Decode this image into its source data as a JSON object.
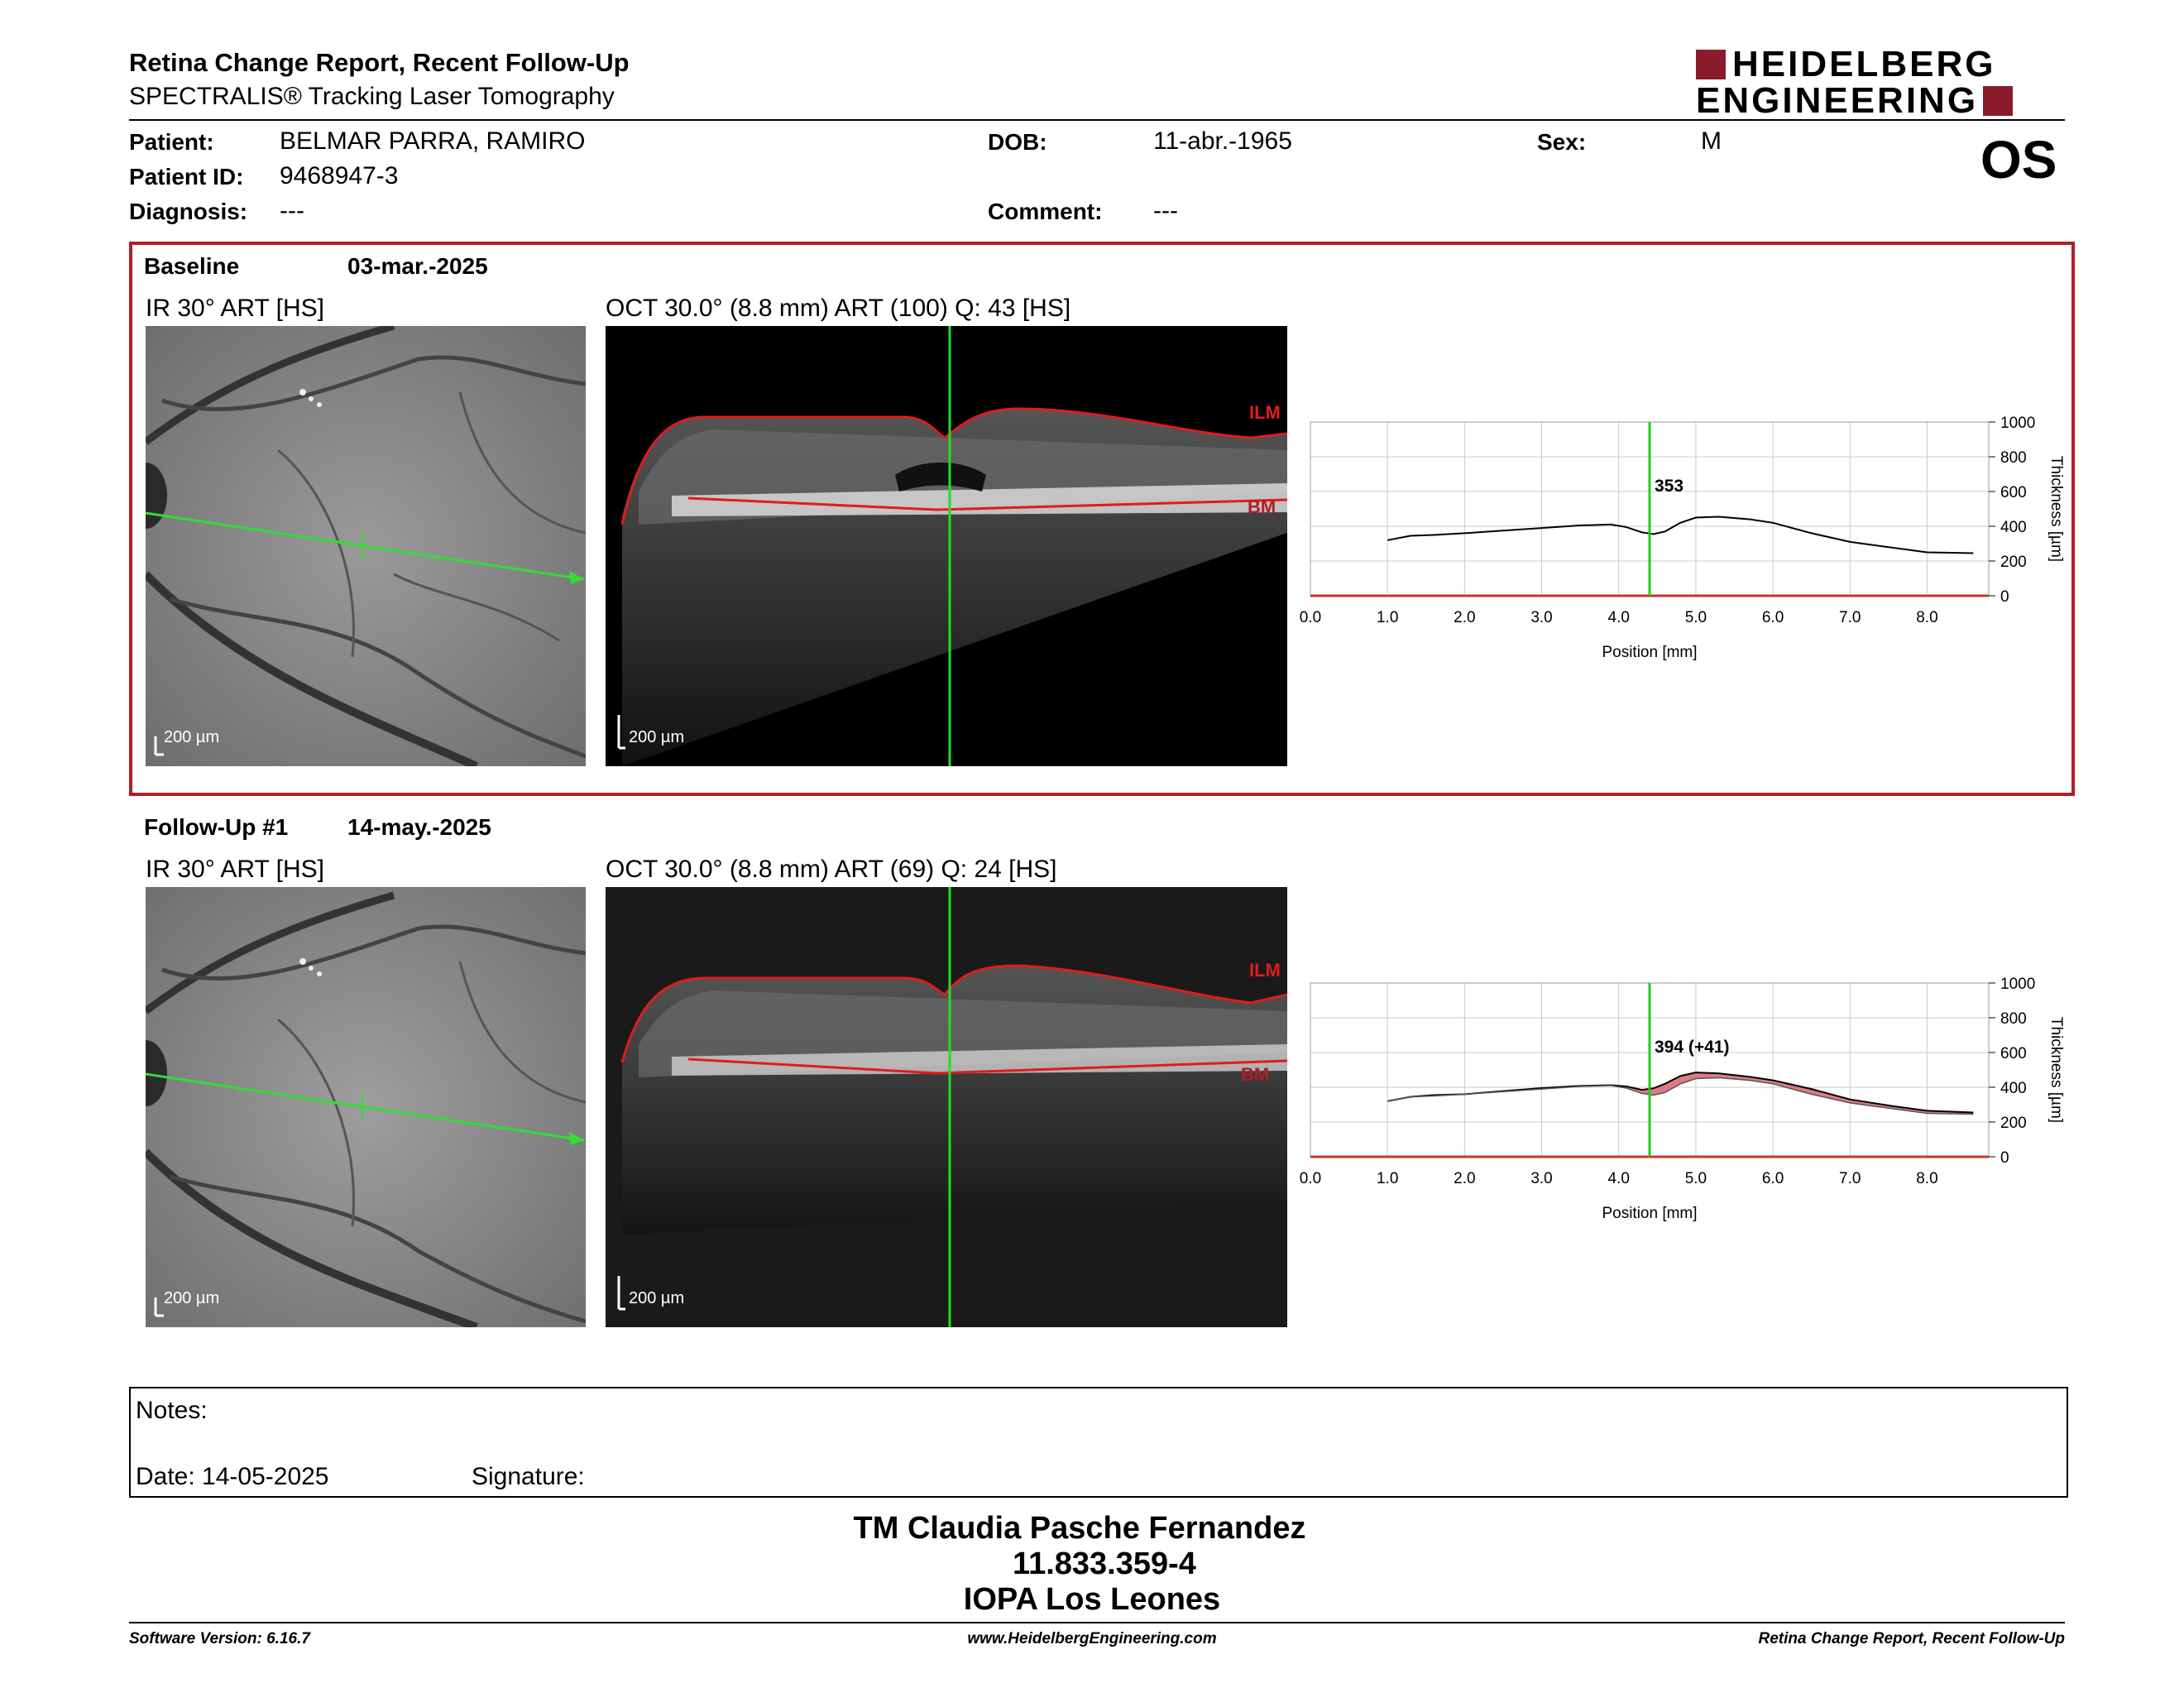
{
  "header": {
    "title": "Retina Change Report, Recent Follow-Up",
    "subtitle": "SPECTRALIS® Tracking Laser Tomography",
    "logo_line1": "HEIDELBERG",
    "logo_line2": "ENGINEERING",
    "eye": "OS"
  },
  "patient": {
    "name_label": "Patient:",
    "name": "BELMAR PARRA, RAMIRO",
    "id_label": "Patient ID:",
    "id": "9468947-3",
    "diagnosis_label": "Diagnosis:",
    "diagnosis": "---",
    "dob_label": "DOB:",
    "dob": "11-abr.-1965",
    "comment_label": "Comment:",
    "comment": "---",
    "sex_label": "Sex:",
    "sex": "M"
  },
  "baseline": {
    "label": "Baseline",
    "date": "03-mar.-2025",
    "ir_label": "IR 30° ART [HS]",
    "oct_label": "OCT 30.0° (8.8 mm) ART (100) Q: 43 [HS]",
    "scale_ir": "200 µm",
    "scale_oct": "200 µm",
    "ilm": "ILM",
    "bm": "BM"
  },
  "followup": {
    "label": "Follow-Up #1",
    "date": "14-may.-2025",
    "ir_label": "IR 30° ART [HS]",
    "oct_label": "OCT 30.0° (8.8 mm) ART (69) Q: 24 [HS]",
    "scale_ir": "200 µm",
    "scale_oct": "200 µm",
    "ilm": "ILM",
    "bm": "BM"
  },
  "chart_data": [
    {
      "type": "line",
      "xlabel": "Position [mm]",
      "ylabel": "Thickness [µm]",
      "xlim": [
        0,
        8.8
      ],
      "ylim": [
        0,
        1000
      ],
      "x_ticks": [
        "0.0",
        "1.0",
        "2.0",
        "3.0",
        "4.0",
        "5.0",
        "6.0",
        "7.0",
        "8.0"
      ],
      "y_ticks": [
        "0",
        "200",
        "400",
        "600",
        "800",
        "1000"
      ],
      "grid": true,
      "marker_x": 4.4,
      "marker_label": "353",
      "series": [
        {
          "x": [
            1.0,
            1.3,
            1.6,
            2.0,
            2.5,
            3.0,
            3.5,
            3.9,
            4.1,
            4.3,
            4.45,
            4.6,
            4.8,
            5.0,
            5.3,
            5.7,
            6.0,
            6.5,
            7.0,
            7.5,
            8.0,
            8.6
          ],
          "y": [
            320,
            345,
            350,
            360,
            375,
            390,
            405,
            410,
            395,
            365,
            355,
            370,
            420,
            450,
            455,
            440,
            420,
            360,
            310,
            280,
            250,
            245
          ]
        }
      ],
      "colors": {
        "line": "#000000",
        "marker": "#22cc22",
        "axis": "#c0392b"
      }
    },
    {
      "type": "line",
      "xlabel": "Position [mm]",
      "ylabel": "Thickness [µm]",
      "xlim": [
        0,
        8.8
      ],
      "ylim": [
        0,
        1000
      ],
      "x_ticks": [
        "0.0",
        "1.0",
        "2.0",
        "3.0",
        "4.0",
        "5.0",
        "6.0",
        "7.0",
        "8.0"
      ],
      "y_ticks": [
        "0",
        "200",
        "400",
        "600",
        "800",
        "1000"
      ],
      "grid": true,
      "marker_x": 4.4,
      "marker_label": "394 (+41)",
      "series": [
        {
          "x": [
            1.0,
            1.3,
            1.6,
            2.0,
            2.5,
            3.0,
            3.5,
            3.9,
            4.1,
            4.3,
            4.45,
            4.6,
            4.8,
            5.0,
            5.3,
            5.7,
            6.0,
            6.5,
            7.0,
            7.5,
            8.0,
            8.6
          ],
          "y": [
            320,
            345,
            355,
            360,
            378,
            395,
            408,
            412,
            405,
            385,
            394,
            420,
            465,
            485,
            480,
            460,
            440,
            390,
            330,
            295,
            265,
            255
          ]
        },
        {
          "x": [
            1.0,
            1.3,
            1.6,
            2.0,
            2.5,
            3.0,
            3.5,
            3.9,
            4.1,
            4.3,
            4.45,
            4.6,
            4.8,
            5.0,
            5.3,
            5.7,
            6.0,
            6.5,
            7.0,
            7.5,
            8.0,
            8.6
          ],
          "y": [
            320,
            345,
            350,
            360,
            375,
            390,
            405,
            410,
            395,
            365,
            355,
            370,
            420,
            450,
            455,
            440,
            420,
            360,
            310,
            280,
            250,
            245
          ]
        }
      ],
      "colors": {
        "line": "#000000",
        "fill": "#d9646e",
        "marker": "#22cc22",
        "axis": "#c0392b"
      }
    }
  ],
  "notes": {
    "label": "Notes:",
    "date": "Date: 14-05-2025",
    "signature": "Signature:"
  },
  "stamp": {
    "line1": "TM Claudia Pasche Fernandez",
    "line2": "11.833.359-4",
    "line3": "IOPA Los Leones"
  },
  "footer": {
    "software": "Software Version: 6.16.7",
    "url": "www.HeidelbergEngineering.com",
    "report": "Retina Change Report, Recent Follow-Up"
  }
}
